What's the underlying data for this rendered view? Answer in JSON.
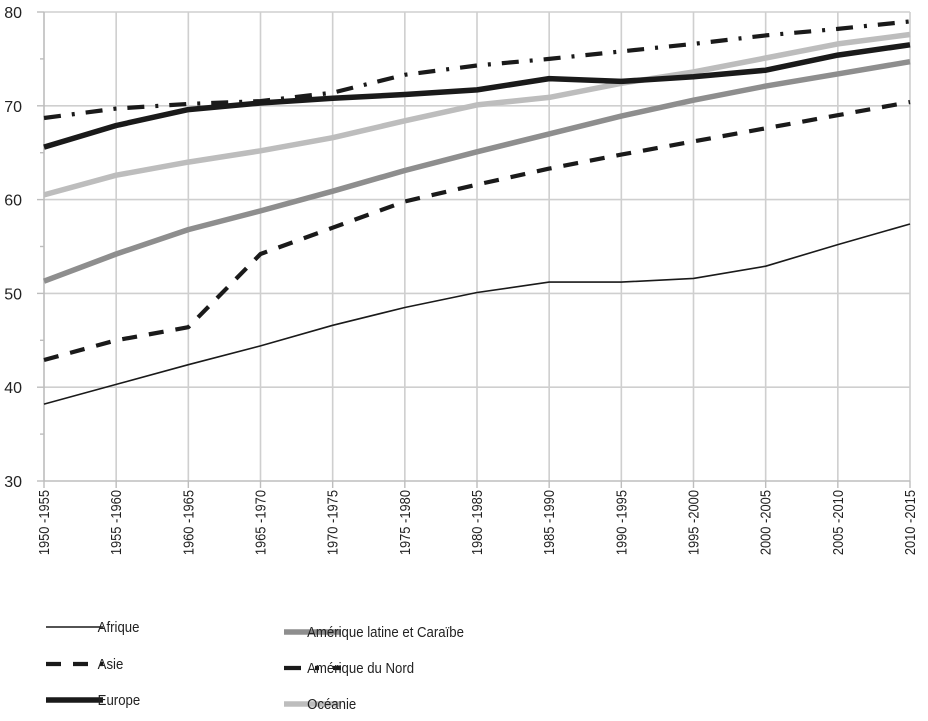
{
  "chart_data": {
    "type": "line",
    "title": "",
    "xlabel": "",
    "ylabel": "",
    "ylim": [
      30,
      80
    ],
    "yticks": [
      30,
      40,
      50,
      60,
      70,
      80
    ],
    "grid": true,
    "legend_position": "bottom",
    "categories": [
      "1950 -1955",
      "1955 -1960",
      "1960 -1965",
      "1965 -1970",
      "1970 -1975",
      "1975 -1980",
      "1980 -1985",
      "1985 -1990",
      "1990 -1995",
      "1995 -2000",
      "2000 -2005",
      "2005 -2010",
      "2010 -2015"
    ],
    "series": [
      {
        "name": "Afrique",
        "color": "#1a1a1a",
        "style": "thin-solid",
        "values": [
          38.2,
          40.3,
          42.4,
          44.4,
          46.6,
          48.5,
          50.1,
          51.2,
          51.2,
          51.6,
          52.9,
          55.2,
          57.4
        ]
      },
      {
        "name": "Asie",
        "color": "#1a1a1a",
        "style": "dashed",
        "values": [
          42.9,
          45.0,
          46.4,
          54.2,
          57.0,
          59.8,
          61.6,
          63.3,
          64.8,
          66.2,
          67.6,
          69.0,
          70.4
        ]
      },
      {
        "name": "Europe",
        "color": "#1a1a1a",
        "style": "thick-solid",
        "values": [
          65.6,
          67.9,
          69.6,
          70.3,
          70.8,
          71.2,
          71.7,
          72.9,
          72.6,
          73.1,
          73.8,
          75.4,
          76.5
        ]
      },
      {
        "name": "Amérique latine et Caraïbe",
        "color": "#8e8e8e",
        "style": "thick-solid",
        "values": [
          51.3,
          54.2,
          56.8,
          58.8,
          60.9,
          63.1,
          65.1,
          67.0,
          68.9,
          70.6,
          72.1,
          73.4,
          74.7
        ]
      },
      {
        "name": "Amérique du Nord",
        "color": "#1a1a1a",
        "style": "dash-dot",
        "values": [
          68.7,
          69.7,
          70.2,
          70.5,
          71.4,
          73.3,
          74.3,
          75.0,
          75.8,
          76.6,
          77.5,
          78.2,
          79.0
        ]
      },
      {
        "name": "Océanie",
        "color": "#bdbdbd",
        "style": "thick-solid",
        "values": [
          60.5,
          62.6,
          64.0,
          65.2,
          66.6,
          68.4,
          70.1,
          70.9,
          72.4,
          73.6,
          75.1,
          76.6,
          77.6
        ]
      }
    ]
  }
}
